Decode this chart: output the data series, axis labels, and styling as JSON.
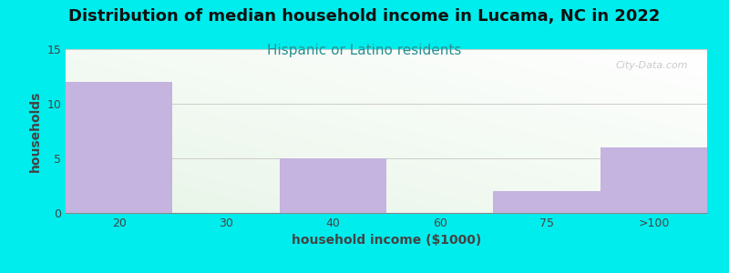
{
  "title": "Distribution of median household income in Lucama, NC in 2022",
  "subtitle": "Hispanic or Latino residents",
  "xlabel": "household income ($1000)",
  "ylabel": "households",
  "categories": [
    "20",
    "30",
    "40",
    "60",
    "75",
    ">100"
  ],
  "values": [
    12,
    0,
    5,
    0,
    2,
    6
  ],
  "bar_color": "#c5b3e0",
  "background_color": "#00EDED",
  "plot_bg_color_top_left": "#d8edd8",
  "plot_bg_color_bottom_right": "#ffffff",
  "ylim": [
    0,
    15
  ],
  "yticks": [
    0,
    5,
    10,
    15
  ],
  "title_fontsize": 13,
  "title_color": "#111111",
  "subtitle_fontsize": 11,
  "subtitle_color": "#2a9090",
  "axis_label_fontsize": 10,
  "tick_fontsize": 9,
  "watermark": "City-Data.com",
  "grid_color": "#cccccc",
  "ylabel_color": "#444444",
  "xlabel_color": "#444444",
  "tick_color": "#444444"
}
